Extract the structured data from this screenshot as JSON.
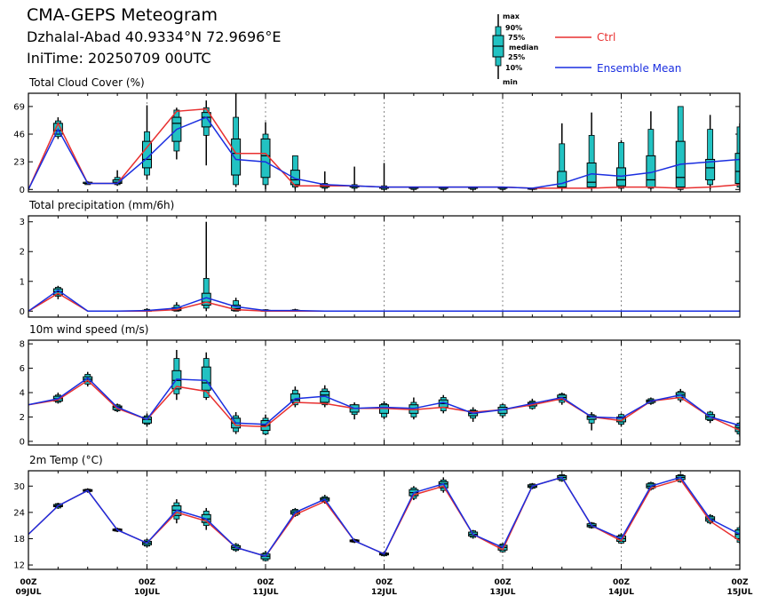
{
  "header": {
    "title": "CMA-GEPS Meteogram",
    "location": "Dzhalal-Abad 40.9334°N 72.9696°E",
    "init_time": "IniTime: 20250709 00UTC"
  },
  "legend": {
    "box_labels": [
      "max",
      "90%",
      "75%",
      "median",
      "25%",
      "10%",
      "min"
    ],
    "ctrl": "Ctrl",
    "mean": "Ensemble Mean",
    "colors": {
      "ctrl": "#e83030",
      "mean": "#1a2ee0",
      "box": "#22c2c2",
      "grid": "#888888"
    }
  },
  "chart_data": {
    "type": "line",
    "x_ticks": [
      {
        "hour": 0,
        "top": "00Z",
        "bottom": "09JUL"
      },
      {
        "hour": 24,
        "top": "00Z",
        "bottom": "10JUL"
      },
      {
        "hour": 48,
        "top": "00Z",
        "bottom": "11JUL"
      },
      {
        "hour": 72,
        "top": "00Z",
        "bottom": "12JUL"
      },
      {
        "hour": 96,
        "top": "00Z",
        "bottom": "13JUL"
      },
      {
        "hour": 120,
        "top": "00Z",
        "bottom": "14JUL"
      },
      {
        "hour": 144,
        "top": "00Z",
        "bottom": "15JUL"
      }
    ],
    "x_range": [
      0,
      144
    ],
    "step_hours": 6,
    "panels": [
      {
        "title": "Total Cloud Cover (%)",
        "ylim": [
          -2,
          80
        ],
        "yticks": [
          0,
          23,
          46,
          69
        ],
        "ctrl": [
          0,
          55,
          5,
          5,
          35,
          65,
          67,
          30,
          30,
          3,
          3,
          3,
          2,
          2,
          2,
          2,
          2,
          1,
          1,
          1,
          2,
          2,
          1,
          2,
          4
        ],
        "mean": [
          0,
          50,
          5,
          5,
          26,
          50,
          60,
          25,
          23,
          9,
          4,
          3,
          2,
          2,
          2,
          2,
          2,
          1,
          5,
          13,
          11,
          14,
          21,
          23,
          25
        ],
        "boxes": [
          null,
          [
            42,
            44,
            46,
            49,
            55,
            57,
            60
          ],
          [
            4,
            4,
            5,
            5,
            6,
            6,
            7
          ],
          [
            3,
            4,
            5,
            6,
            8,
            10,
            16
          ],
          [
            8,
            12,
            18,
            25,
            40,
            48,
            70
          ],
          [
            25,
            32,
            40,
            55,
            60,
            66,
            68
          ],
          [
            20,
            45,
            52,
            60,
            64,
            68,
            74
          ],
          [
            2,
            4,
            12,
            30,
            42,
            60,
            80
          ],
          [
            0,
            4,
            10,
            28,
            42,
            46,
            56
          ],
          [
            0,
            2,
            4,
            8,
            16,
            28,
            28
          ],
          [
            0,
            1,
            2,
            3,
            4,
            5,
            15
          ],
          [
            0,
            1,
            2,
            3,
            3,
            4,
            19
          ],
          [
            0,
            0,
            1,
            2,
            2,
            3,
            22
          ],
          [
            0,
            0,
            1,
            1,
            2,
            2,
            2
          ],
          [
            0,
            0,
            1,
            1,
            2,
            2,
            2
          ],
          [
            0,
            0,
            1,
            1,
            2,
            2,
            2
          ],
          [
            0,
            0,
            1,
            1,
            2,
            2,
            2
          ],
          [
            0,
            0,
            1,
            1,
            1,
            1,
            1
          ],
          [
            0,
            1,
            1,
            2,
            15,
            38,
            55
          ],
          [
            0,
            1,
            2,
            6,
            22,
            45,
            64
          ],
          [
            0,
            1,
            3,
            8,
            18,
            39,
            41
          ],
          [
            0,
            1,
            2,
            8,
            28,
            50,
            65
          ],
          [
            0,
            0,
            2,
            10,
            40,
            69,
            69
          ],
          [
            0,
            4,
            8,
            18,
            25,
            50,
            62
          ],
          [
            0,
            2,
            5,
            15,
            30,
            52,
            55
          ]
        ]
      },
      {
        "title": "Total precipitation (mm/6h)",
        "ylim": [
          -0.2,
          3.2
        ],
        "yticks": [
          0,
          1,
          2,
          3
        ],
        "ctrl": [
          0,
          0.6,
          0,
          0,
          0,
          0.05,
          0.3,
          0.05,
          0,
          0,
          0,
          0,
          0,
          0,
          0,
          0,
          0,
          0,
          0,
          0,
          0,
          0,
          0,
          0,
          0
        ],
        "mean": [
          0,
          0.7,
          0,
          0,
          0.02,
          0.1,
          0.45,
          0.15,
          0.02,
          0.02,
          0,
          0,
          0,
          0,
          0,
          0,
          0,
          0,
          0,
          0,
          0,
          0,
          0,
          0,
          0
        ],
        "boxes": [
          null,
          [
            0.4,
            0.5,
            0.55,
            0.65,
            0.75,
            0.8,
            0.85
          ],
          null,
          null,
          [
            0,
            0,
            0,
            0.01,
            0.03,
            0.06,
            0.1
          ],
          [
            0,
            0,
            0.02,
            0.05,
            0.12,
            0.2,
            0.3
          ],
          [
            0,
            0.1,
            0.2,
            0.3,
            0.6,
            1.1,
            3.0
          ],
          [
            0,
            0,
            0.02,
            0.08,
            0.2,
            0.35,
            0.45
          ],
          [
            0,
            0,
            0,
            0.01,
            0.03,
            0.05,
            0.06
          ],
          [
            0,
            0,
            0,
            0.01,
            0.03,
            0.05,
            0.08
          ],
          null,
          null,
          null,
          null,
          null,
          null,
          null,
          null,
          null,
          null,
          null,
          null,
          null,
          null,
          null
        ]
      },
      {
        "title": "10m wind speed (m/s)",
        "ylim": [
          -0.3,
          8.3
        ],
        "yticks": [
          0,
          2,
          4,
          6,
          8
        ],
        "ctrl": [
          3.0,
          3.4,
          5.0,
          2.7,
          1.8,
          4.5,
          4.1,
          1.3,
          1.2,
          3.2,
          3.1,
          2.7,
          2.7,
          2.6,
          2.8,
          2.4,
          2.6,
          3.0,
          3.5,
          2.0,
          1.7,
          3.3,
          3.6,
          2.0,
          0.9
        ],
        "mean": [
          3.0,
          3.5,
          5.2,
          2.8,
          1.8,
          5.1,
          5.0,
          1.5,
          1.4,
          3.5,
          3.7,
          2.7,
          2.8,
          2.7,
          3.2,
          2.3,
          2.6,
          3.1,
          3.6,
          2.0,
          1.9,
          3.3,
          3.8,
          2.0,
          1.3
        ],
        "boxes": [
          null,
          [
            3.1,
            3.2,
            3.3,
            3.5,
            3.7,
            3.8,
            4.0
          ],
          [
            4.5,
            4.7,
            4.9,
            5.1,
            5.3,
            5.5,
            5.7
          ],
          [
            2.4,
            2.5,
            2.6,
            2.8,
            2.9,
            3.0,
            3.1
          ],
          [
            1.2,
            1.4,
            1.5,
            1.8,
            2.0,
            2.1,
            2.3
          ],
          [
            3.4,
            3.9,
            4.3,
            5.0,
            5.8,
            6.8,
            7.5
          ],
          [
            3.4,
            3.6,
            4.2,
            4.8,
            6.1,
            6.8,
            7.3
          ],
          [
            0.6,
            0.8,
            1.1,
            1.5,
            1.9,
            2.1,
            2.4
          ],
          [
            0.5,
            0.6,
            0.9,
            1.3,
            1.7,
            1.9,
            2.2
          ],
          [
            2.8,
            3.0,
            3.2,
            3.4,
            3.9,
            4.2,
            4.5
          ],
          [
            2.8,
            3.0,
            3.2,
            3.8,
            4.1,
            4.3,
            4.6
          ],
          [
            1.8,
            2.2,
            2.4,
            2.7,
            3.0,
            3.0,
            3.2
          ],
          [
            1.8,
            2.0,
            2.3,
            2.7,
            3.0,
            3.1,
            3.3
          ],
          [
            1.8,
            2.0,
            2.3,
            2.6,
            3.0,
            3.2,
            3.6
          ],
          [
            2.3,
            2.5,
            2.8,
            3.1,
            3.4,
            3.6,
            3.8
          ],
          [
            1.6,
            1.9,
            2.1,
            2.3,
            2.5,
            2.6,
            2.8
          ],
          [
            1.9,
            2.1,
            2.3,
            2.6,
            2.8,
            3.0,
            3.1
          ],
          [
            2.6,
            2.7,
            2.9,
            3.1,
            3.2,
            3.3,
            3.5
          ],
          [
            3.0,
            3.2,
            3.4,
            3.6,
            3.8,
            3.9,
            4.0
          ],
          [
            0.9,
            1.5,
            1.8,
            2.0,
            2.1,
            2.2,
            2.4
          ],
          [
            1.2,
            1.4,
            1.6,
            1.9,
            2.0,
            2.2,
            2.3
          ],
          [
            3.0,
            3.1,
            3.2,
            3.3,
            3.4,
            3.5,
            3.6
          ],
          [
            3.2,
            3.4,
            3.6,
            3.8,
            4.0,
            4.1,
            4.3
          ],
          [
            1.5,
            1.7,
            1.8,
            2.0,
            2.2,
            2.4,
            2.5
          ],
          [
            0.4,
            0.6,
            0.8,
            1.1,
            1.3,
            1.5,
            1.6
          ]
        ]
      },
      {
        "title": "2m Temp (°C)",
        "ylim": [
          11,
          33.5
        ],
        "yticks": [
          12,
          18,
          24,
          30
        ],
        "ctrl": [
          19.0,
          25.5,
          29.0,
          20.0,
          17.0,
          24.0,
          22.0,
          16.0,
          14.0,
          23.5,
          26.5,
          17.5,
          14.5,
          28.0,
          30.0,
          19.0,
          15.5,
          30.0,
          32.0,
          21.0,
          17.5,
          29.5,
          31.5,
          22.0,
          17.5
        ],
        "mean": [
          19.0,
          25.5,
          29.0,
          20.0,
          17.0,
          24.5,
          22.5,
          16.0,
          14.0,
          24.0,
          27.0,
          17.5,
          14.5,
          28.5,
          30.5,
          19.0,
          16.0,
          30.0,
          32.0,
          21.0,
          18.0,
          30.0,
          32.0,
          22.5,
          19.0
        ],
        "boxes": [
          null,
          [
            24.8,
            25.0,
            25.3,
            25.5,
            25.8,
            26.0,
            26.2
          ],
          [
            28.5,
            28.7,
            28.8,
            29.0,
            29.2,
            29.3,
            29.5
          ],
          [
            19.5,
            19.7,
            19.8,
            20.0,
            20.2,
            20.3,
            20.5
          ],
          [
            16.0,
            16.3,
            16.6,
            17.0,
            17.4,
            17.7,
            18.0
          ],
          [
            21.5,
            22.5,
            23.3,
            24.5,
            25.5,
            26.2,
            27.0
          ],
          [
            20.0,
            21.0,
            21.7,
            22.5,
            23.5,
            24.3,
            25.0
          ],
          [
            15.0,
            15.3,
            15.6,
            16.0,
            16.4,
            16.7,
            17.0
          ],
          [
            12.8,
            13.0,
            13.4,
            14.0,
            14.5,
            14.8,
            15.2
          ],
          [
            23.0,
            23.3,
            23.6,
            24.0,
            24.4,
            24.7,
            25.0
          ],
          [
            26.0,
            26.3,
            26.6,
            27.0,
            27.3,
            27.6,
            28.0
          ],
          [
            17.0,
            17.2,
            17.3,
            17.5,
            17.7,
            17.8,
            18.0
          ],
          [
            14.0,
            14.1,
            14.3,
            14.5,
            14.7,
            14.8,
            15.0
          ],
          [
            26.8,
            27.2,
            27.8,
            28.5,
            29.2,
            29.6,
            30.0
          ],
          [
            28.5,
            29.0,
            29.6,
            30.5,
            31.0,
            31.4,
            32.0
          ],
          [
            18.0,
            18.3,
            18.6,
            19.0,
            19.5,
            19.8,
            20.0
          ],
          [
            14.8,
            15.0,
            15.4,
            16.0,
            16.5,
            16.8,
            17.0
          ],
          [
            29.3,
            29.5,
            29.7,
            30.0,
            30.3,
            30.5,
            30.7
          ],
          [
            31.0,
            31.2,
            31.5,
            32.0,
            32.4,
            32.6,
            32.8
          ],
          [
            20.3,
            20.5,
            20.7,
            21.0,
            21.4,
            21.6,
            21.8
          ],
          [
            16.8,
            17.0,
            17.4,
            18.0,
            18.6,
            18.9,
            19.2
          ],
          [
            29.0,
            29.3,
            29.6,
            30.0,
            30.5,
            30.8,
            31.0
          ],
          [
            30.8,
            31.0,
            31.5,
            32.0,
            32.4,
            32.6,
            32.8
          ],
          [
            21.3,
            21.6,
            22.0,
            22.5,
            23.0,
            23.3,
            23.6
          ],
          [
            16.8,
            17.2,
            18.0,
            19.0,
            20.0,
            20.5,
            21.0
          ]
        ]
      }
    ]
  }
}
